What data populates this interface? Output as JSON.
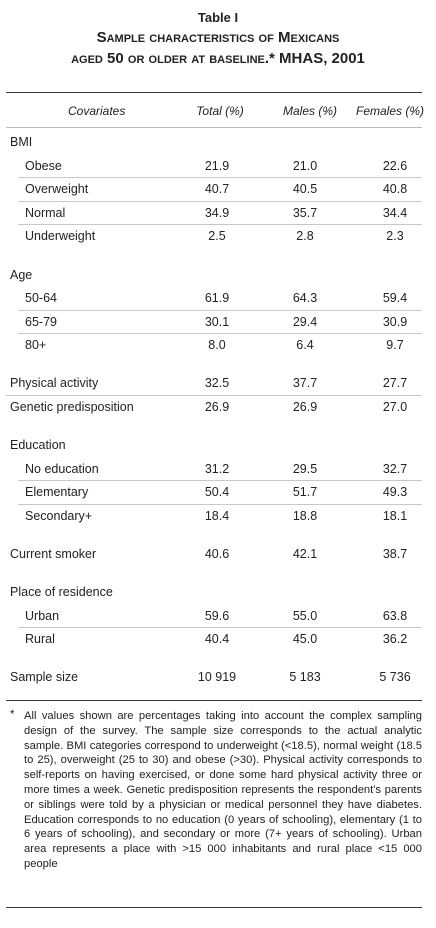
{
  "title": "Table I",
  "subtitle_lines": [
    "Sample characteristics of Mexicans",
    "aged 50 or older at baseline.* MHAS, 2001"
  ],
  "columns": [
    "Covariates",
    "Total (%)",
    "Males (%)",
    "Females (%)"
  ],
  "sections": [
    {
      "label": "BMI",
      "rows": [
        {
          "label": "Obese",
          "values": [
            "21.9",
            "21.0",
            "22.6"
          ]
        },
        {
          "label": "Overweight",
          "values": [
            "40.7",
            "40.5",
            "40.8"
          ]
        },
        {
          "label": "Normal",
          "values": [
            "34.9",
            "35.7",
            "34.4"
          ]
        },
        {
          "label": "Underweight",
          "values": [
            "2.5",
            "2.8",
            "2.3"
          ]
        }
      ]
    },
    {
      "label": "Age",
      "rows": [
        {
          "label": "50-64",
          "values": [
            "61.9",
            "64.3",
            "59.4"
          ]
        },
        {
          "label": "65-79",
          "values": [
            "30.1",
            "29.4",
            "30.9"
          ]
        },
        {
          "label": "80+",
          "values": [
            "8.0",
            "6.4",
            "9.7"
          ]
        }
      ]
    },
    {
      "label": "Physical activity",
      "values": [
        "32.5",
        "37.7",
        "27.7"
      ]
    },
    {
      "label": "Genetic predisposition",
      "values": [
        "26.9",
        "26.9",
        "27.0"
      ]
    },
    {
      "label": "Education",
      "rows": [
        {
          "label": "No education",
          "values": [
            "31.2",
            "29.5",
            "32.7"
          ]
        },
        {
          "label": "Elementary",
          "values": [
            "50.4",
            "51.7",
            "49.3"
          ]
        },
        {
          "label": "Secondary+",
          "values": [
            "18.4",
            "18.8",
            "18.1"
          ]
        }
      ]
    },
    {
      "label": "Current smoker",
      "values": [
        "40.6",
        "42.1",
        "38.7"
      ]
    },
    {
      "label": "Place of residence",
      "rows": [
        {
          "label": "Urban",
          "values": [
            "59.6",
            "55.0",
            "63.8"
          ]
        },
        {
          "label": "Rural",
          "values": [
            "40.4",
            "45.0",
            "36.2"
          ]
        }
      ]
    },
    {
      "label": "Sample size",
      "values": [
        "10 919",
        "5 183",
        "5 736"
      ]
    }
  ],
  "footnote": {
    "marker": "*",
    "text": "All values shown are percentages taking into account the complex sampling design of the survey. The sample size corresponds to the actual analytic sample. BMI categories correspond to underweight (<18.5), normal weight (18.5 to 25), overweight (25 to 30) and obese (>30). Physical activity corresponds to self-reports on having exercised, or done some hard physical activity three or more times a week. Genetic predisposition represents the respondent's parents or siblings were told by a physician or medical personnel they have diabetes. Education corresponds to no education (0 years of schooling), elementary (1 to 6 years of schooling), and secondary or more (7+ years of schooling). Urban area represents a place with >15 000 inhabitants and rural place <15 000 people"
  }
}
